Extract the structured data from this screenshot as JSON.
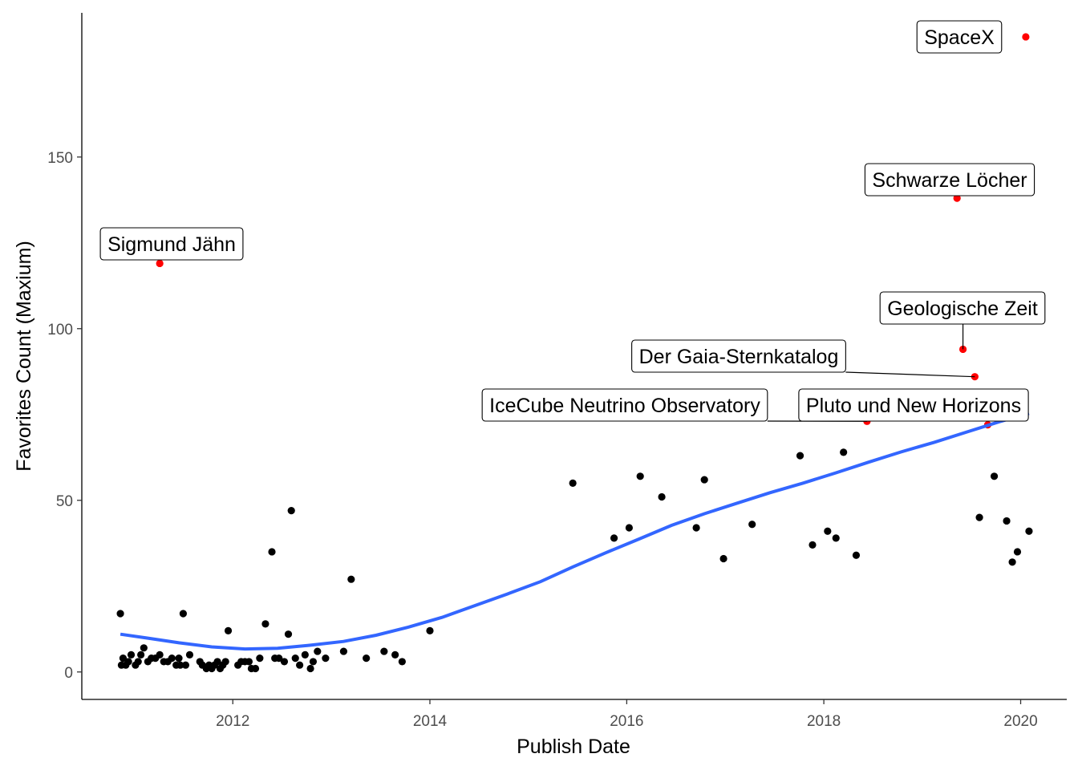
{
  "chart_data": {
    "type": "scatter",
    "title": "",
    "xlabel": "Publish Date",
    "ylabel": "Favorites Count (Maxium)",
    "xlim": [
      "2010-06-20",
      "2020-06-20"
    ],
    "ylim": [
      -8,
      192
    ],
    "x_ticks": [
      "2012",
      "2014",
      "2016",
      "2018",
      "2020"
    ],
    "y_ticks": [
      "0",
      "50",
      "100",
      "150"
    ],
    "grid": false,
    "legend": "none",
    "colors": {
      "point": "#000000",
      "highlight": "#ff0000",
      "smooth": "#3366ff"
    },
    "points": [
      [
        "2010-11-10",
        17
      ],
      [
        "2010-11-14",
        2
      ],
      [
        "2010-11-20",
        4
      ],
      [
        "2010-11-30",
        2
      ],
      [
        "2010-12-10",
        3
      ],
      [
        "2010-12-20",
        5
      ],
      [
        "2011-01-05",
        2
      ],
      [
        "2011-01-15",
        3
      ],
      [
        "2011-01-25",
        5
      ],
      [
        "2011-02-05",
        7
      ],
      [
        "2011-02-20",
        3
      ],
      [
        "2011-03-05",
        4
      ],
      [
        "2011-03-20",
        4
      ],
      [
        "2011-04-05",
        5
      ],
      [
        "2011-04-20",
        3
      ],
      [
        "2011-05-05",
        3
      ],
      [
        "2011-05-20",
        4
      ],
      [
        "2011-06-05",
        2
      ],
      [
        "2011-06-15",
        4
      ],
      [
        "2011-06-20",
        2
      ],
      [
        "2011-07-01",
        17
      ],
      [
        "2011-07-10",
        2
      ],
      [
        "2011-07-25",
        5
      ],
      [
        "2011-09-01",
        3
      ],
      [
        "2011-09-10",
        2
      ],
      [
        "2011-09-25",
        1
      ],
      [
        "2011-10-05",
        2
      ],
      [
        "2011-10-15",
        1
      ],
      [
        "2011-10-25",
        2
      ],
      [
        "2011-11-05",
        3
      ],
      [
        "2011-11-15",
        1
      ],
      [
        "2011-11-25",
        2
      ],
      [
        "2011-12-05",
        3
      ],
      [
        "2011-12-15",
        12
      ],
      [
        "2012-01-20",
        2
      ],
      [
        "2012-02-01",
        3
      ],
      [
        "2012-02-15",
        3
      ],
      [
        "2012-03-01",
        3
      ],
      [
        "2012-03-10",
        1
      ],
      [
        "2012-03-25",
        1
      ],
      [
        "2012-04-10",
        4
      ],
      [
        "2012-05-01",
        14
      ],
      [
        "2012-05-25",
        35
      ],
      [
        "2012-06-05",
        4
      ],
      [
        "2012-06-20",
        4
      ],
      [
        "2012-07-10",
        3
      ],
      [
        "2012-07-25",
        11
      ],
      [
        "2012-08-05",
        47
      ],
      [
        "2012-08-20",
        4
      ],
      [
        "2012-09-05",
        2
      ],
      [
        "2012-09-25",
        5
      ],
      [
        "2012-10-15",
        1
      ],
      [
        "2012-10-25",
        3
      ],
      [
        "2012-11-10",
        6
      ],
      [
        "2012-12-10",
        4
      ],
      [
        "2013-02-15",
        6
      ],
      [
        "2013-03-15",
        27
      ],
      [
        "2013-05-10",
        4
      ],
      [
        "2013-07-15",
        6
      ],
      [
        "2013-08-25",
        5
      ],
      [
        "2013-09-20",
        3
      ],
      [
        "2014-01-01",
        12
      ],
      [
        "2015-06-15",
        55
      ],
      [
        "2015-11-15",
        39
      ],
      [
        "2016-01-10",
        42
      ],
      [
        "2016-02-20",
        57
      ],
      [
        "2016-05-10",
        51
      ],
      [
        "2016-09-15",
        42
      ],
      [
        "2016-10-15",
        56
      ],
      [
        "2016-12-25",
        33
      ],
      [
        "2017-04-10",
        43
      ],
      [
        "2017-10-05",
        63
      ],
      [
        "2017-11-20",
        37
      ],
      [
        "2018-01-15",
        41
      ],
      [
        "2018-02-15",
        39
      ],
      [
        "2018-03-15",
        64
      ],
      [
        "2018-05-01",
        34
      ],
      [
        "2019-08-01",
        45
      ],
      [
        "2019-09-25",
        57
      ],
      [
        "2019-11-10",
        44
      ],
      [
        "2019-12-01",
        32
      ],
      [
        "2019-12-20",
        35
      ],
      [
        "2020-02-01",
        41
      ]
    ],
    "highlighted": [
      {
        "label": "Sigmund Jähn",
        "x": "2011-04-05",
        "y": 119
      },
      {
        "label": "SpaceX",
        "x": "2020-01-20",
        "y": 185
      },
      {
        "label": "Schwarze Löcher",
        "x": "2019-05-10",
        "y": 138
      },
      {
        "label": "Geologische Zeit",
        "x": "2019-06-01",
        "y": 94
      },
      {
        "label": "Der Gaia-Sternkatalog",
        "x": "2019-07-15",
        "y": 86
      },
      {
        "label": "IceCube Neutrino Observatory",
        "x": "2018-06-10",
        "y": 73
      },
      {
        "label": "Pluto und New Horizons",
        "x": "2019-09-01",
        "y": 72
      }
    ],
    "smooth_line": [
      [
        "2010-11-10",
        11
      ],
      [
        "2011-02-15",
        9.9
      ],
      [
        "2011-06-15",
        8.5
      ],
      [
        "2011-10-15",
        7.3
      ],
      [
        "2012-02-15",
        6.7
      ],
      [
        "2012-06-15",
        6.9
      ],
      [
        "2012-10-15",
        7.8
      ],
      [
        "2013-02-15",
        8.9
      ],
      [
        "2013-06-15",
        10.7
      ],
      [
        "2013-10-15",
        13.1
      ],
      [
        "2014-02-15",
        15.9
      ],
      [
        "2014-06-15",
        19.3
      ],
      [
        "2014-10-15",
        22.7
      ],
      [
        "2015-02-15",
        26.3
      ],
      [
        "2015-06-15",
        30.6
      ],
      [
        "2015-10-15",
        34.7
      ],
      [
        "2016-02-15",
        38.7
      ],
      [
        "2016-06-15",
        42.7
      ],
      [
        "2016-10-15",
        46.1
      ],
      [
        "2017-02-15",
        49.2
      ],
      [
        "2017-06-15",
        52.2
      ],
      [
        "2017-10-15",
        55.0
      ],
      [
        "2018-02-15",
        58.0
      ],
      [
        "2018-06-15",
        61.1
      ],
      [
        "2018-10-15",
        64.1
      ],
      [
        "2019-02-15",
        66.9
      ],
      [
        "2019-06-15",
        69.9
      ],
      [
        "2019-10-15",
        72.9
      ],
      [
        "2020-02-01",
        75.3
      ]
    ]
  }
}
